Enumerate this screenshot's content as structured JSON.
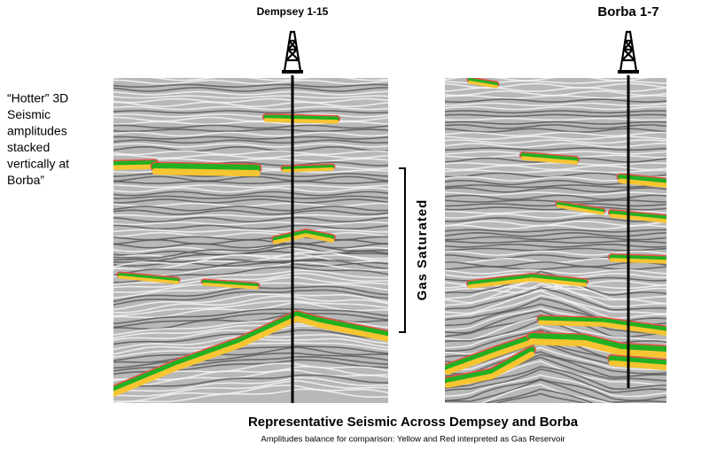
{
  "wells": {
    "left": "Dempsey 1-15",
    "right": "Borba 1-7"
  },
  "note": {
    "lines": [
      "“Hotter” 3D",
      "Seismic",
      "amplitudes",
      "stacked",
      "vertically at",
      "Borba”"
    ]
  },
  "bracket_label": "Gas Saturated",
  "caption": {
    "title": "Representative Seismic Across Dempsey and Borba",
    "subtitle": "Amplitudes balance for comparison: Yellow and Red interpreted as Gas Reservoir"
  }
}
